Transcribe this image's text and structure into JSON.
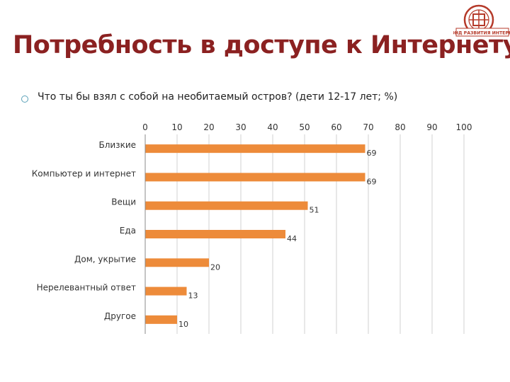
{
  "logo": {
    "text": "ФОНД РАЗВИТИЯ ИНТЕРНЕТ",
    "color": "#b53a2a"
  },
  "slide": {
    "title": "Потребность в доступе к Интернету",
    "title_color": "#8b2121",
    "bullet_text": "Что ты бы взял с собой на необитаемый остров? (дети 12-17 лет; %)"
  },
  "chart_data": {
    "type": "bar",
    "orientation": "horizontal",
    "categories": [
      "Близкие",
      "Компьютер и интернет",
      "Вещи",
      "Еда",
      "Дом, укрытие",
      "Нерелевантный ответ",
      "Другое"
    ],
    "values": [
      69,
      69,
      51,
      44,
      20,
      13,
      10
    ],
    "xlim": [
      0,
      100
    ],
    "xticks": [
      0,
      10,
      20,
      30,
      40,
      50,
      60,
      70,
      80,
      90,
      100
    ],
    "xaxis_position": "top",
    "grid": true,
    "data_labels": true,
    "bar_color": "#ed8b3a"
  }
}
